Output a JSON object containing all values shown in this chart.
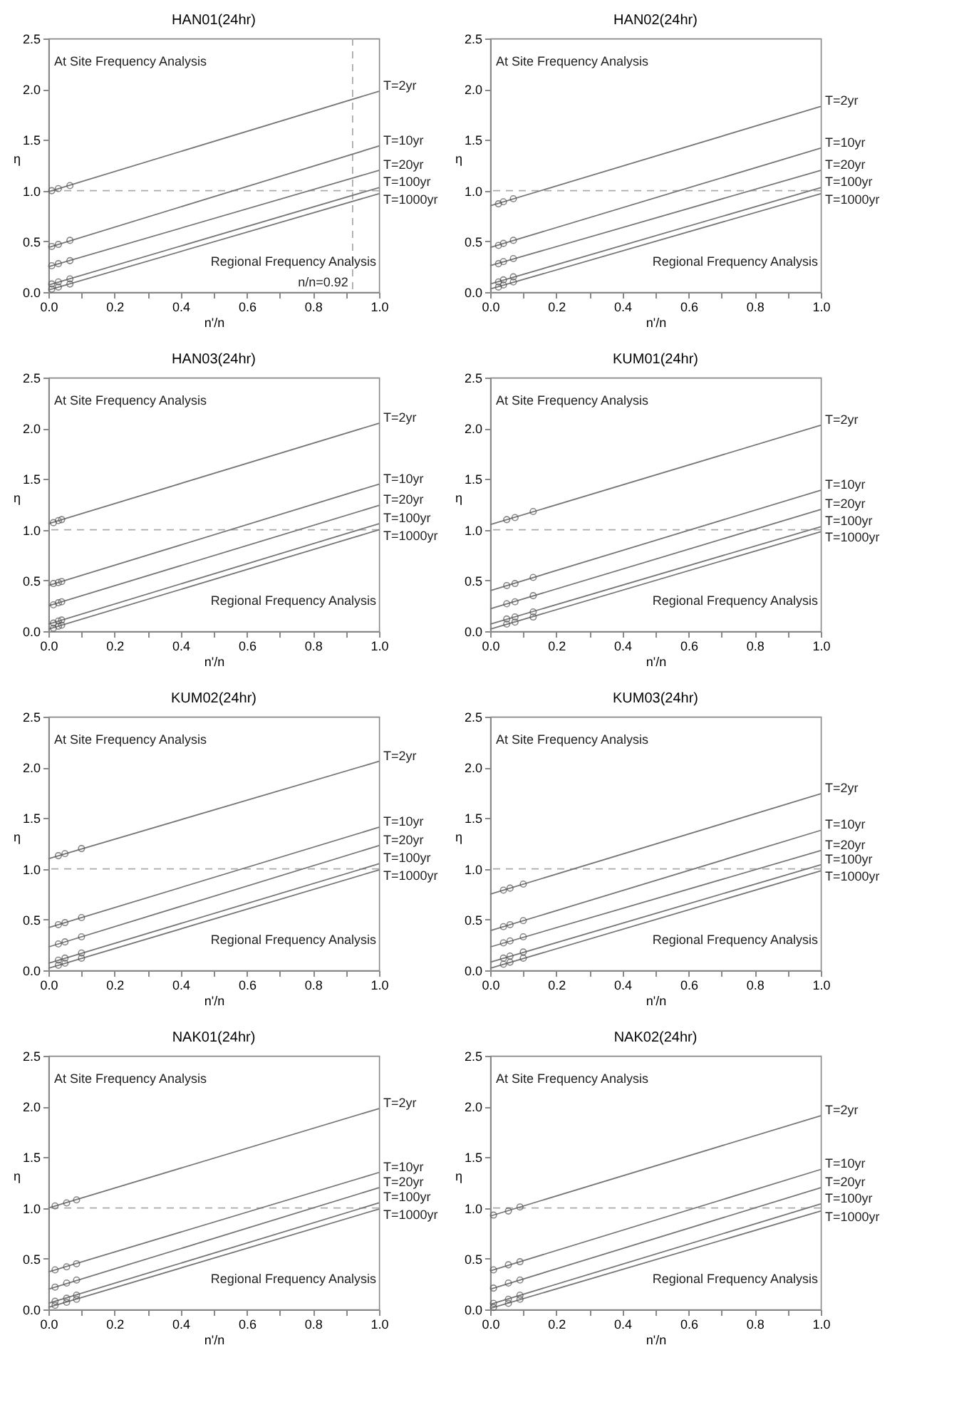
{
  "chart_data": [
    {
      "type": "line",
      "title": "HAN01(24hr)",
      "xlabel": "n'/n",
      "ylabel": "η",
      "xlim": [
        0,
        1
      ],
      "ylim": [
        0,
        2.5
      ],
      "xticks": [
        {
          "value": 0,
          "label": "0.0"
        },
        {
          "value": 0.1,
          "label": null
        },
        0.2,
        {
          "value": 0.3,
          "label": null
        },
        0.4,
        {
          "value": 0.5,
          "label": null
        },
        0.6,
        {
          "value": 0.7,
          "label": null
        },
        0.8,
        {
          "value": 0.9,
          "label": null
        },
        {
          "value": 1,
          "label": "1.0"
        }
      ],
      "yticks": [
        {
          "value": 0,
          "label": "0.0"
        },
        0.5,
        {
          "value": 1,
          "label": "1.0"
        },
        1.5,
        {
          "value": 2,
          "label": "2.0"
        },
        2.5
      ],
      "annotations": [
        "At Site Frequency Analysis",
        "Regional Frequency Analysis"
      ],
      "ref_lines": [
        {
          "axis": "y",
          "value": 1,
          "color": "#aaaaaa",
          "line_style": "dashed"
        },
        {
          "axis": "x",
          "value": 0.92,
          "label": "n/n=0.92",
          "color": "#aaaaaa",
          "line_style": "dashed"
        }
      ],
      "series": [
        {
          "name": "T=2yr",
          "type": "line",
          "marker": "none",
          "color": "#777777",
          "x": [
            0,
            1
          ],
          "values": [
            0.99,
            1.98
          ]
        },
        {
          "name": "T=10yr",
          "type": "line",
          "marker": "none",
          "color": "#777777",
          "x": [
            0,
            1
          ],
          "values": [
            0.44,
            1.44
          ]
        },
        {
          "name": "T=20yr",
          "type": "line",
          "marker": "none",
          "color": "#777777",
          "x": [
            0,
            1
          ],
          "values": [
            0.25,
            1.2
          ]
        },
        {
          "name": "T=100yr",
          "type": "line",
          "marker": "none",
          "color": "#777777",
          "x": [
            0,
            1
          ],
          "values": [
            0.07,
            1.03
          ]
        },
        {
          "name": "T=1000yr",
          "type": "line",
          "marker": "none",
          "color": "#777777",
          "x": [
            0,
            1
          ],
          "values": [
            0.02,
            0.97
          ]
        },
        {
          "type": "scatter",
          "marker": "circle",
          "color": "#555555",
          "x": [
            0.01,
            0.03,
            0.065,
            0.01,
            0.03,
            0.065,
            0.01,
            0.03,
            0.065,
            0.01,
            0.03,
            0.065,
            0.01,
            0.03,
            0.065
          ],
          "values": [
            1.0,
            1.02,
            1.05,
            0.45,
            0.47,
            0.51,
            0.26,
            0.28,
            0.31,
            0.08,
            0.1,
            0.13,
            0.03,
            0.05,
            0.08
          ]
        }
      ]
    },
    {
      "type": "line",
      "title": "HAN02(24hr)",
      "xlabel": "n'/n",
      "ylabel": "η",
      "xlim": [
        0,
        1
      ],
      "ylim": [
        0,
        2.5
      ],
      "xticks": [
        {
          "value": 0,
          "label": "0.0"
        },
        {
          "value": 0.1,
          "label": null
        },
        0.2,
        {
          "value": 0.3,
          "label": null
        },
        0.4,
        {
          "value": 0.5,
          "label": null
        },
        0.6,
        {
          "value": 0.7,
          "label": null
        },
        0.8,
        {
          "value": 0.9,
          "label": null
        },
        {
          "value": 1,
          "label": "1.0"
        }
      ],
      "yticks": [
        {
          "value": 0,
          "label": "0.0"
        },
        0.5,
        {
          "value": 1,
          "label": "1.0"
        },
        1.5,
        {
          "value": 2,
          "label": "2.0"
        },
        2.5
      ],
      "annotations": [
        "At Site Frequency Analysis",
        "Regional Frequency Analysis"
      ],
      "ref_lines": [
        {
          "axis": "y",
          "value": 1,
          "color": "#aaaaaa",
          "line_style": "dashed"
        }
      ],
      "series": [
        {
          "name": "T=2yr",
          "type": "line",
          "marker": "none",
          "color": "#777777",
          "x": [
            0,
            1
          ],
          "values": [
            0.85,
            1.83
          ]
        },
        {
          "name": "T=10yr",
          "type": "line",
          "marker": "none",
          "color": "#777777",
          "x": [
            0,
            1
          ],
          "values": [
            0.44,
            1.42
          ]
        },
        {
          "name": "T=20yr",
          "type": "line",
          "marker": "none",
          "color": "#777777",
          "x": [
            0,
            1
          ],
          "values": [
            0.26,
            1.2
          ]
        },
        {
          "name": "T=100yr",
          "type": "line",
          "marker": "none",
          "color": "#777777",
          "x": [
            0,
            1
          ],
          "values": [
            0.08,
            1.03
          ]
        },
        {
          "name": "T=1000yr",
          "type": "line",
          "marker": "none",
          "color": "#777777",
          "x": [
            0,
            1
          ],
          "values": [
            0.03,
            0.97
          ]
        },
        {
          "type": "scatter",
          "marker": "circle",
          "color": "#555555",
          "x": [
            0.025,
            0.04,
            0.07,
            0.025,
            0.04,
            0.07,
            0.025,
            0.04,
            0.07,
            0.025,
            0.04,
            0.07,
            0.025,
            0.04,
            0.07
          ],
          "values": [
            0.87,
            0.89,
            0.92,
            0.46,
            0.48,
            0.51,
            0.28,
            0.3,
            0.33,
            0.1,
            0.12,
            0.15,
            0.05,
            0.07,
            0.1
          ]
        }
      ]
    },
    {
      "type": "line",
      "title": "HAN03(24hr)",
      "xlabel": "n'/n",
      "ylabel": "η",
      "xlim": [
        0,
        1
      ],
      "ylim": [
        0,
        2.5
      ],
      "xticks": [
        {
          "value": 0,
          "label": "0.0"
        },
        {
          "value": 0.1,
          "label": null
        },
        0.2,
        {
          "value": 0.3,
          "label": null
        },
        0.4,
        {
          "value": 0.5,
          "label": null
        },
        0.6,
        {
          "value": 0.7,
          "label": null
        },
        0.8,
        {
          "value": 0.9,
          "label": null
        },
        {
          "value": 1,
          "label": "1.0"
        }
      ],
      "yticks": [
        {
          "value": 0,
          "label": "0.0"
        },
        0.5,
        {
          "value": 1,
          "label": "1.0"
        },
        1.5,
        {
          "value": 2,
          "label": "2.0"
        },
        2.5
      ],
      "annotations": [
        "At Site Frequency Analysis",
        "Regional Frequency Analysis"
      ],
      "ref_lines": [
        {
          "axis": "y",
          "value": 1,
          "color": "#aaaaaa",
          "line_style": "dashed"
        }
      ],
      "series": [
        {
          "name": "T=2yr",
          "type": "line",
          "marker": "none",
          "color": "#777777",
          "x": [
            0,
            1
          ],
          "values": [
            1.06,
            2.05
          ]
        },
        {
          "name": "T=10yr",
          "type": "line",
          "marker": "none",
          "color": "#777777",
          "x": [
            0,
            1
          ],
          "values": [
            0.45,
            1.45
          ]
        },
        {
          "name": "T=20yr",
          "type": "line",
          "marker": "none",
          "color": "#777777",
          "x": [
            0,
            1
          ],
          "values": [
            0.25,
            1.24
          ]
        },
        {
          "name": "T=100yr",
          "type": "line",
          "marker": "none",
          "color": "#777777",
          "x": [
            0,
            1
          ],
          "values": [
            0.07,
            1.06
          ]
        },
        {
          "name": "T=1000yr",
          "type": "line",
          "marker": "none",
          "color": "#777777",
          "x": [
            0,
            1
          ],
          "values": [
            0.02,
            1.0
          ]
        },
        {
          "type": "scatter",
          "marker": "circle",
          "color": "#555555",
          "x": [
            0.015,
            0.03,
            0.04,
            0.015,
            0.03,
            0.04,
            0.015,
            0.03,
            0.04,
            0.015,
            0.03,
            0.04,
            0.015,
            0.03,
            0.04
          ],
          "values": [
            1.07,
            1.09,
            1.1,
            0.47,
            0.48,
            0.49,
            0.26,
            0.28,
            0.29,
            0.08,
            0.1,
            0.11,
            0.03,
            0.05,
            0.06
          ]
        }
      ]
    },
    {
      "type": "line",
      "title": "KUM01(24hr)",
      "xlabel": "n'/n",
      "ylabel": "η",
      "xlim": [
        0,
        1
      ],
      "ylim": [
        0,
        2.5
      ],
      "xticks": [
        {
          "value": 0,
          "label": "0.0"
        },
        {
          "value": 0.1,
          "label": null
        },
        0.2,
        {
          "value": 0.3,
          "label": null
        },
        0.4,
        {
          "value": 0.5,
          "label": null
        },
        0.6,
        {
          "value": 0.7,
          "label": null
        },
        0.8,
        {
          "value": 0.9,
          "label": null
        },
        {
          "value": 1,
          "label": "1.0"
        }
      ],
      "yticks": [
        {
          "value": 0,
          "label": "0.0"
        },
        0.5,
        {
          "value": 1,
          "label": "1.0"
        },
        1.5,
        {
          "value": 2,
          "label": "2.0"
        },
        2.5
      ],
      "annotations": [
        "At Site Frequency Analysis",
        "Regional Frequency Analysis"
      ],
      "ref_lines": [
        {
          "axis": "y",
          "value": 1,
          "color": "#aaaaaa",
          "line_style": "dashed"
        }
      ],
      "series": [
        {
          "name": "T=2yr",
          "type": "line",
          "marker": "none",
          "color": "#777777",
          "x": [
            0,
            1
          ],
          "values": [
            1.05,
            2.03
          ]
        },
        {
          "name": "T=10yr",
          "type": "line",
          "marker": "none",
          "color": "#777777",
          "x": [
            0,
            1
          ],
          "values": [
            0.4,
            1.39
          ]
        },
        {
          "name": "T=20yr",
          "type": "line",
          "marker": "none",
          "color": "#777777",
          "x": [
            0,
            1
          ],
          "values": [
            0.22,
            1.2
          ]
        },
        {
          "name": "T=100yr",
          "type": "line",
          "marker": "none",
          "color": "#777777",
          "x": [
            0,
            1
          ],
          "values": [
            0.07,
            1.03
          ]
        },
        {
          "name": "T=1000yr",
          "type": "line",
          "marker": "none",
          "color": "#777777",
          "x": [
            0,
            1
          ],
          "values": [
            0.02,
            0.98
          ]
        },
        {
          "type": "scatter",
          "marker": "circle",
          "color": "#555555",
          "x": [
            0.05,
            0.075,
            0.13,
            0.05,
            0.075,
            0.13,
            0.05,
            0.075,
            0.13,
            0.05,
            0.075,
            0.13,
            0.05,
            0.075,
            0.13
          ],
          "values": [
            1.1,
            1.12,
            1.18,
            0.45,
            0.47,
            0.53,
            0.27,
            0.29,
            0.35,
            0.12,
            0.14,
            0.19,
            0.07,
            0.09,
            0.14
          ]
        }
      ]
    },
    {
      "type": "line",
      "title": "KUM02(24hr)",
      "xlabel": "n'/n",
      "ylabel": "η",
      "xlim": [
        0,
        1
      ],
      "ylim": [
        0,
        2.5
      ],
      "xticks": [
        {
          "value": 0,
          "label": "0.0"
        },
        {
          "value": 0.1,
          "label": null
        },
        0.2,
        {
          "value": 0.3,
          "label": null
        },
        0.4,
        {
          "value": 0.5,
          "label": null
        },
        0.6,
        {
          "value": 0.7,
          "label": null
        },
        0.8,
        {
          "value": 0.9,
          "label": null
        },
        {
          "value": 1,
          "label": "1.0"
        }
      ],
      "yticks": [
        {
          "value": 0,
          "label": "0.0"
        },
        0.5,
        {
          "value": 1,
          "label": "1.0"
        },
        1.5,
        {
          "value": 2,
          "label": "2.0"
        },
        2.5
      ],
      "annotations": [
        "At Site Frequency Analysis",
        "Regional Frequency Analysis"
      ],
      "ref_lines": [
        {
          "axis": "y",
          "value": 1,
          "color": "#aaaaaa",
          "line_style": "dashed"
        }
      ],
      "series": [
        {
          "name": "T=2yr",
          "type": "line",
          "marker": "none",
          "color": "#777777",
          "x": [
            0,
            1
          ],
          "values": [
            1.1,
            2.06
          ]
        },
        {
          "name": "T=10yr",
          "type": "line",
          "marker": "none",
          "color": "#777777",
          "x": [
            0,
            1
          ],
          "values": [
            0.42,
            1.41
          ]
        },
        {
          "name": "T=20yr",
          "type": "line",
          "marker": "none",
          "color": "#777777",
          "x": [
            0,
            1
          ],
          "values": [
            0.23,
            1.23
          ]
        },
        {
          "name": "T=100yr",
          "type": "line",
          "marker": "none",
          "color": "#777777",
          "x": [
            0,
            1
          ],
          "values": [
            0.07,
            1.05
          ]
        },
        {
          "name": "T=1000yr",
          "type": "line",
          "marker": "none",
          "color": "#777777",
          "x": [
            0,
            1
          ],
          "values": [
            0.02,
            0.99
          ]
        },
        {
          "type": "scatter",
          "marker": "circle",
          "color": "#555555",
          "x": [
            0.03,
            0.05,
            0.1,
            0.03,
            0.05,
            0.1,
            0.03,
            0.05,
            0.1,
            0.03,
            0.05,
            0.1,
            0.03,
            0.05,
            0.1
          ],
          "values": [
            1.13,
            1.15,
            1.2,
            0.45,
            0.47,
            0.52,
            0.26,
            0.28,
            0.33,
            0.1,
            0.12,
            0.17,
            0.05,
            0.07,
            0.12
          ]
        }
      ]
    },
    {
      "type": "line",
      "title": "KUM03(24hr)",
      "xlabel": "n'/n",
      "ylabel": "η",
      "xlim": [
        0,
        1
      ],
      "ylim": [
        0,
        2.5
      ],
      "xticks": [
        {
          "value": 0,
          "label": "0.0"
        },
        {
          "value": 0.1,
          "label": null
        },
        0.2,
        {
          "value": 0.3,
          "label": null
        },
        0.4,
        {
          "value": 0.5,
          "label": null
        },
        0.6,
        {
          "value": 0.7,
          "label": null
        },
        0.8,
        {
          "value": 0.9,
          "label": null
        },
        {
          "value": 1,
          "label": "1.0"
        }
      ],
      "yticks": [
        {
          "value": 0,
          "label": "0.0"
        },
        0.5,
        {
          "value": 1,
          "label": "1.0"
        },
        1.5,
        {
          "value": 2,
          "label": "2.0"
        },
        2.5
      ],
      "annotations": [
        "At Site Frequency Analysis",
        "Regional Frequency Analysis"
      ],
      "ref_lines": [
        {
          "axis": "y",
          "value": 1,
          "color": "#aaaaaa",
          "line_style": "dashed"
        }
      ],
      "series": [
        {
          "name": "T=2yr",
          "type": "line",
          "marker": "none",
          "color": "#777777",
          "x": [
            0,
            1
          ],
          "values": [
            0.75,
            1.74
          ]
        },
        {
          "name": "T=10yr",
          "type": "line",
          "marker": "none",
          "color": "#777777",
          "x": [
            0,
            1
          ],
          "values": [
            0.39,
            1.38
          ]
        },
        {
          "name": "T=20yr",
          "type": "line",
          "marker": "none",
          "color": "#777777",
          "x": [
            0,
            1
          ],
          "values": [
            0.23,
            1.18
          ]
        },
        {
          "name": "T=100yr",
          "type": "line",
          "marker": "none",
          "color": "#777777",
          "x": [
            0,
            1
          ],
          "values": [
            0.08,
            1.04
          ]
        },
        {
          "name": "T=1000yr",
          "type": "line",
          "marker": "none",
          "color": "#777777",
          "x": [
            0,
            1
          ],
          "values": [
            0.02,
            0.98
          ]
        },
        {
          "type": "scatter",
          "marker": "circle",
          "color": "#555555",
          "x": [
            0.04,
            0.06,
            0.1,
            0.04,
            0.06,
            0.1,
            0.04,
            0.06,
            0.1,
            0.04,
            0.06,
            0.1,
            0.04,
            0.06,
            0.1
          ],
          "values": [
            0.79,
            0.81,
            0.85,
            0.43,
            0.45,
            0.49,
            0.27,
            0.29,
            0.33,
            0.12,
            0.14,
            0.18,
            0.06,
            0.08,
            0.12
          ]
        }
      ]
    },
    {
      "type": "line",
      "title": "NAK01(24hr)",
      "xlabel": "n'/n",
      "ylabel": "η",
      "xlim": [
        0,
        1
      ],
      "ylim": [
        0,
        2.5
      ],
      "xticks": [
        {
          "value": 0,
          "label": "0.0"
        },
        {
          "value": 0.1,
          "label": null
        },
        0.2,
        {
          "value": 0.3,
          "label": null
        },
        0.4,
        {
          "value": 0.5,
          "label": null
        },
        0.6,
        {
          "value": 0.7,
          "label": null
        },
        0.8,
        {
          "value": 0.9,
          "label": null
        },
        {
          "value": 1,
          "label": "1.0"
        }
      ],
      "yticks": [
        {
          "value": 0,
          "label": "0.0"
        },
        0.5,
        {
          "value": 1,
          "label": "1.0"
        },
        1.5,
        {
          "value": 2,
          "label": "2.0"
        },
        2.5
      ],
      "annotations": [
        "At Site Frequency Analysis",
        "Regional Frequency Analysis"
      ],
      "ref_lines": [
        {
          "axis": "y",
          "value": 1,
          "color": "#aaaaaa",
          "line_style": "dashed"
        }
      ],
      "series": [
        {
          "name": "T=2yr",
          "type": "line",
          "marker": "none",
          "color": "#777777",
          "x": [
            0,
            1
          ],
          "values": [
            1.0,
            1.98
          ]
        },
        {
          "name": "T=10yr",
          "type": "line",
          "marker": "none",
          "color": "#777777",
          "x": [
            0,
            1
          ],
          "values": [
            0.37,
            1.35
          ]
        },
        {
          "name": "T=20yr",
          "type": "line",
          "marker": "none",
          "color": "#777777",
          "x": [
            0,
            1
          ],
          "values": [
            0.2,
            1.2
          ]
        },
        {
          "name": "T=100yr",
          "type": "line",
          "marker": "none",
          "color": "#777777",
          "x": [
            0,
            1
          ],
          "values": [
            0.06,
            1.05
          ]
        },
        {
          "name": "T=1000yr",
          "type": "line",
          "marker": "none",
          "color": "#777777",
          "x": [
            0,
            1
          ],
          "values": [
            0.02,
            0.99
          ]
        },
        {
          "type": "scatter",
          "marker": "circle",
          "color": "#555555",
          "x": [
            0.02,
            0.055,
            0.085,
            0.02,
            0.055,
            0.085,
            0.02,
            0.055,
            0.085,
            0.02,
            0.055,
            0.085,
            0.02,
            0.055,
            0.085
          ],
          "values": [
            1.02,
            1.05,
            1.08,
            0.39,
            0.42,
            0.45,
            0.22,
            0.26,
            0.29,
            0.08,
            0.11,
            0.14,
            0.04,
            0.07,
            0.1
          ]
        }
      ]
    },
    {
      "type": "line",
      "title": "NAK02(24hr)",
      "xlabel": "n'/n",
      "ylabel": "η",
      "xlim": [
        0,
        1
      ],
      "ylim": [
        0,
        2.5
      ],
      "xticks": [
        {
          "value": 0,
          "label": "0.0"
        },
        {
          "value": 0.1,
          "label": null
        },
        0.2,
        {
          "value": 0.3,
          "label": null
        },
        0.4,
        {
          "value": 0.5,
          "label": null
        },
        0.6,
        {
          "value": 0.7,
          "label": null
        },
        0.8,
        {
          "value": 0.9,
          "label": null
        },
        {
          "value": 1,
          "label": "1.0"
        }
      ],
      "yticks": [
        {
          "value": 0,
          "label": "0.0"
        },
        0.5,
        {
          "value": 1,
          "label": "1.0"
        },
        1.5,
        {
          "value": 2,
          "label": "2.0"
        },
        2.5
      ],
      "annotations": [
        "At Site Frequency Analysis",
        "Regional Frequency Analysis"
      ],
      "ref_lines": [
        {
          "axis": "y",
          "value": 1,
          "color": "#aaaaaa",
          "line_style": "dashed"
        }
      ],
      "series": [
        {
          "name": "T=2yr",
          "type": "line",
          "marker": "none",
          "color": "#777777",
          "x": [
            0,
            1
          ],
          "values": [
            0.92,
            1.91
          ]
        },
        {
          "name": "T=10yr",
          "type": "line",
          "marker": "none",
          "color": "#777777",
          "x": [
            0,
            1
          ],
          "values": [
            0.38,
            1.38
          ]
        },
        {
          "name": "T=20yr",
          "type": "line",
          "marker": "none",
          "color": "#777777",
          "x": [
            0,
            1
          ],
          "values": [
            0.2,
            1.2
          ]
        },
        {
          "name": "T=100yr",
          "type": "line",
          "marker": "none",
          "color": "#777777",
          "x": [
            0,
            1
          ],
          "values": [
            0.05,
            1.04
          ]
        },
        {
          "name": "T=1000yr",
          "type": "line",
          "marker": "none",
          "color": "#777777",
          "x": [
            0,
            1
          ],
          "values": [
            0.01,
            0.97
          ]
        },
        {
          "type": "scatter",
          "marker": "circle",
          "color": "#555555",
          "x": [
            0.01,
            0.055,
            0.09,
            0.01,
            0.055,
            0.09,
            0.01,
            0.055,
            0.09,
            0.01,
            0.055,
            0.09,
            0.01,
            0.055,
            0.09
          ],
          "values": [
            0.93,
            0.97,
            1.01,
            0.39,
            0.44,
            0.47,
            0.21,
            0.26,
            0.29,
            0.06,
            0.1,
            0.14,
            0.02,
            0.06,
            0.1
          ]
        }
      ]
    }
  ]
}
